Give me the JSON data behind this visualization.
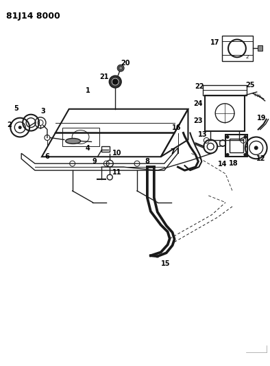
{
  "title": "81J14 8000",
  "bg_color": "#ffffff",
  "line_color": "#1a1a1a",
  "title_fontsize": 9,
  "label_fontsize": 7,
  "figsize": [
    3.94,
    5.33
  ],
  "dpi": 100
}
